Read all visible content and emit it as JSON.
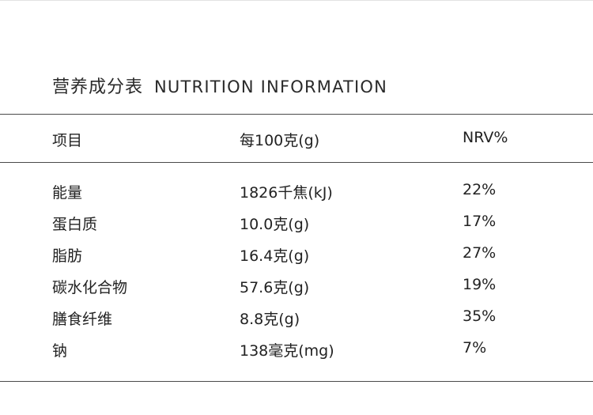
{
  "title": {
    "zh": "营养成分表",
    "en": "NUTRITION INFORMATION"
  },
  "table": {
    "headers": [
      "项目",
      "每100克(g)",
      "NRV%"
    ],
    "rows": [
      [
        "能量",
        "1826千焦(kJ)",
        "22%"
      ],
      [
        "蛋白质",
        "10.0克(g)",
        "17%"
      ],
      [
        "脂肪",
        "16.4克(g)",
        "27%"
      ],
      [
        "碳水化合物",
        "57.6克(g)",
        "19%"
      ],
      [
        "膳食纤维",
        "8.8克(g)",
        "35%"
      ],
      [
        "钠",
        "138毫克(mg)",
        "7%"
      ]
    ]
  }
}
